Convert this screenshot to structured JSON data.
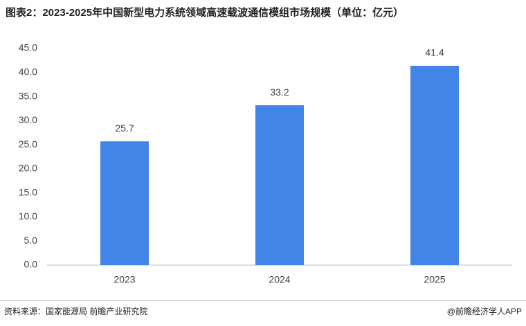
{
  "chart_data": {
    "type": "bar",
    "title": "图表2：2023-2025年中国新型电力系统领域高速载波通信模组市场规模（单位：亿元）",
    "categories": [
      "2023",
      "2024",
      "2025"
    ],
    "values": [
      25.7,
      33.2,
      41.4
    ],
    "color": "#4285e6",
    "ylim": [
      0,
      45
    ],
    "yticks": [
      {
        "value": 0,
        "label": "0.0"
      },
      {
        "value": 5,
        "label": "5.0"
      },
      {
        "value": 10,
        "label": "10.0"
      },
      {
        "value": 15,
        "label": "15.0"
      },
      {
        "value": 20,
        "label": "20.0"
      },
      {
        "value": 25,
        "label": "25.0"
      },
      {
        "value": 30,
        "label": "30.0"
      },
      {
        "value": 35,
        "label": "35.0"
      },
      {
        "value": 40,
        "label": "40.0"
      },
      {
        "value": 45,
        "label": "45.0"
      }
    ],
    "grid": false,
    "source": "资料来源：国家能源局 前瞻产业研究院",
    "credit": "@前瞻经济学人APP"
  }
}
